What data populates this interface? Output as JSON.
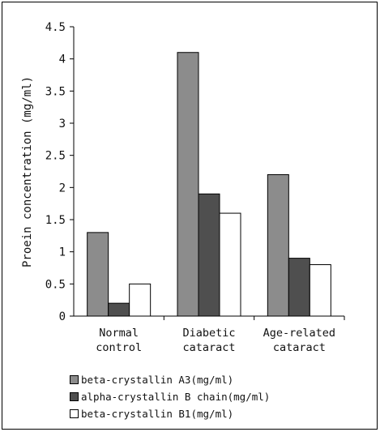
{
  "chart_data": {
    "type": "bar",
    "categories": [
      "Normal\ncontrol",
      "Diabetic\ncataract",
      "Age-related\ncataract"
    ],
    "series": [
      {
        "name": "beta-crystallin A3(mg/ml)",
        "values": [
          1.3,
          4.1,
          2.2
        ],
        "color": "#8c8c8c"
      },
      {
        "name": "alpha-crystallin B chain(mg/ml)",
        "values": [
          0.2,
          1.9,
          0.9
        ],
        "color": "#4f4f4f"
      },
      {
        "name": "beta-crystallin B1(mg/ml)",
        "values": [
          0.5,
          1.6,
          0.8
        ],
        "color": "#ffffff"
      }
    ],
    "ylabel": "Proein concentration (mg/ml)",
    "yticks": [
      "0",
      "0.5",
      "1",
      "1.5",
      "2",
      "2.5",
      "3",
      "3.5",
      "4",
      "4.5"
    ],
    "ylim": [
      0,
      4.5
    ],
    "grid": false,
    "legend_position": "bottom"
  }
}
